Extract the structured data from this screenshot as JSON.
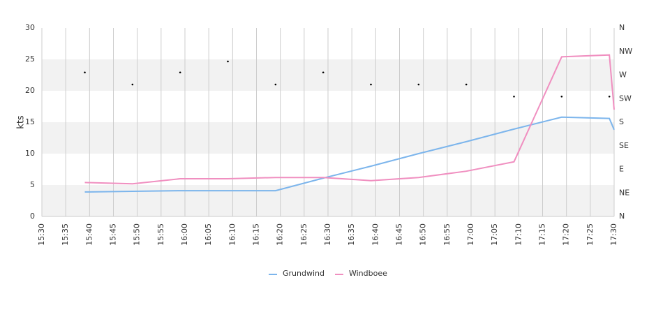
{
  "chart_data": {
    "type": "line",
    "y_label": "kts",
    "x": [
      "15:39",
      "15:49",
      "15:59",
      "16:09",
      "16:19",
      "16:29",
      "16:39",
      "16:49",
      "16:59",
      "17:09",
      "17:19",
      "17:29",
      "17:30"
    ],
    "xlim": [
      "15:30",
      "17:30"
    ],
    "xticks": [
      "15:30",
      "15:35",
      "15:40",
      "15:45",
      "15:50",
      "15:55",
      "16:00",
      "16:05",
      "16:10",
      "16:15",
      "16:20",
      "16:25",
      "16:30",
      "16:35",
      "16:40",
      "16:45",
      "16:50",
      "16:55",
      "17:00",
      "17:05",
      "17:10",
      "17:15",
      "17:20",
      "17:25",
      "17:30"
    ],
    "ylim": [
      0,
      30
    ],
    "yticks": [
      0,
      5,
      10,
      15,
      20,
      25,
      30
    ],
    "y2lim": [
      0,
      360
    ],
    "y2ticks": [
      {
        "value": 0,
        "label": "N"
      },
      {
        "value": 45,
        "label": "NE"
      },
      {
        "value": 90,
        "label": "E"
      },
      {
        "value": 135,
        "label": "SE"
      },
      {
        "value": 180,
        "label": "S"
      },
      {
        "value": 225,
        "label": "SW"
      },
      {
        "value": 270,
        "label": "W"
      },
      {
        "value": 315,
        "label": "NW"
      },
      {
        "value": 360,
        "label": "N"
      }
    ],
    "grid": true,
    "band_color": "#f2f2f2",
    "legend": "bottom",
    "series": [
      {
        "name": "Grundwind",
        "color": "#7cb5ec",
        "values": [
          3.9,
          4.0,
          4.1,
          4.1,
          4.1,
          6.1,
          8.0,
          10.0,
          11.9,
          13.9,
          15.8,
          15.6,
          13.8
        ]
      },
      {
        "name": "Windboee",
        "color": "#f08fc0",
        "values": [
          5.4,
          5.2,
          6.0,
          6.0,
          6.2,
          6.2,
          5.7,
          6.2,
          7.2,
          8.7,
          25.4,
          25.7,
          17.0
        ]
      },
      {
        "type": "scatter",
        "axis": "y2",
        "color": "#000000",
        "values": [
          275,
          252,
          275,
          296,
          252,
          275,
          252,
          252,
          252,
          229,
          229,
          229,
          null
        ]
      }
    ]
  }
}
